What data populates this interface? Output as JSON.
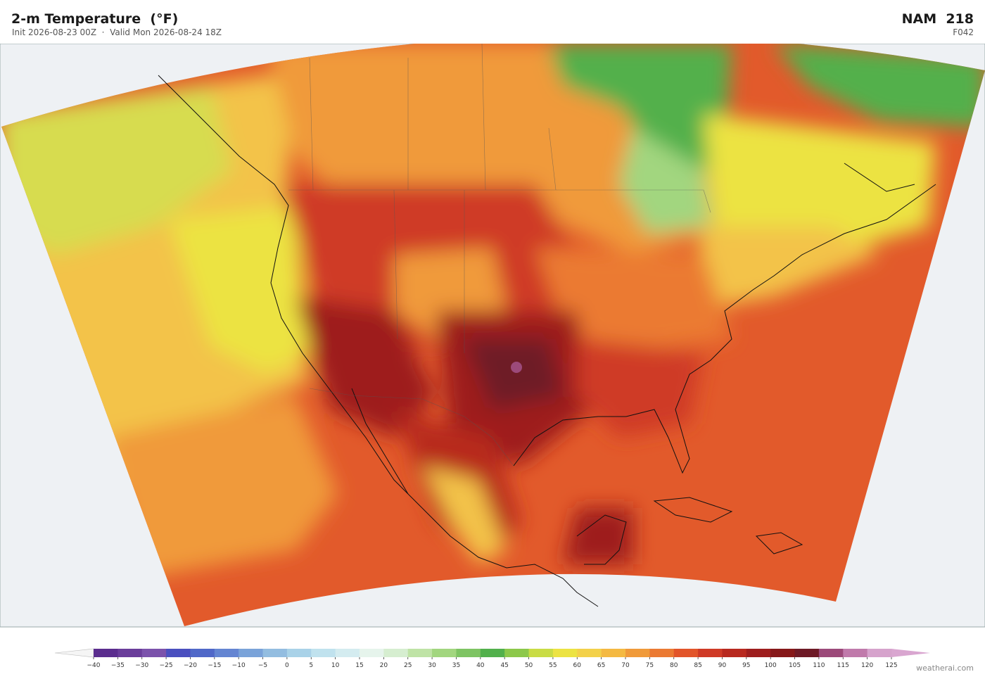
{
  "header": {
    "title": "2-m Temperature  (°F)",
    "subtitle": "Init 2026-08-23 00Z  ·  Valid Mon 2026-08-24 18Z",
    "model": "NAM  218",
    "forecast_hour": "F042"
  },
  "colorbar": {
    "ticks": [
      {
        "value": -40,
        "label": "−40"
      },
      {
        "value": -35,
        "label": "−35"
      },
      {
        "value": -30,
        "label": "−30"
      },
      {
        "value": -25,
        "label": "−25"
      },
      {
        "value": -20,
        "label": "−20"
      },
      {
        "value": -15,
        "label": "−15"
      },
      {
        "value": -10,
        "label": "−10"
      },
      {
        "value": -5,
        "label": "−5"
      },
      0,
      5,
      10,
      15,
      20,
      25,
      30,
      35,
      40,
      45,
      50,
      55,
      60,
      65,
      70,
      75,
      80,
      85,
      90,
      95,
      100,
      105,
      110,
      115,
      120,
      125
    ],
    "colors": [
      "#5b2d8e",
      "#6a3d9a",
      "#7b52ab",
      "#4a4fbf",
      "#5068c8",
      "#6485d2",
      "#7aa3d9",
      "#93bde0",
      "#a9d2e8",
      "#c0e2ee",
      "#d4ecf0",
      "#e6f4ec",
      "#d6eed0",
      "#bfe3a6",
      "#a2d67f",
      "#7ec463",
      "#52b04c",
      "#8cc84a",
      "#c9dc45",
      "#ece343",
      "#f3d14a",
      "#f4b942",
      "#f09a3a",
      "#eb7a33",
      "#e2552a",
      "#cf3a26",
      "#b8291f",
      "#9e1e1e",
      "#861819",
      "#6e1a26",
      "#9c4a7a",
      "#c07aab",
      "#d6a3cc"
    ],
    "under_color": "#f5f5f5",
    "over_color": "#d9a6d0"
  },
  "watermark": "weatherai.com"
}
